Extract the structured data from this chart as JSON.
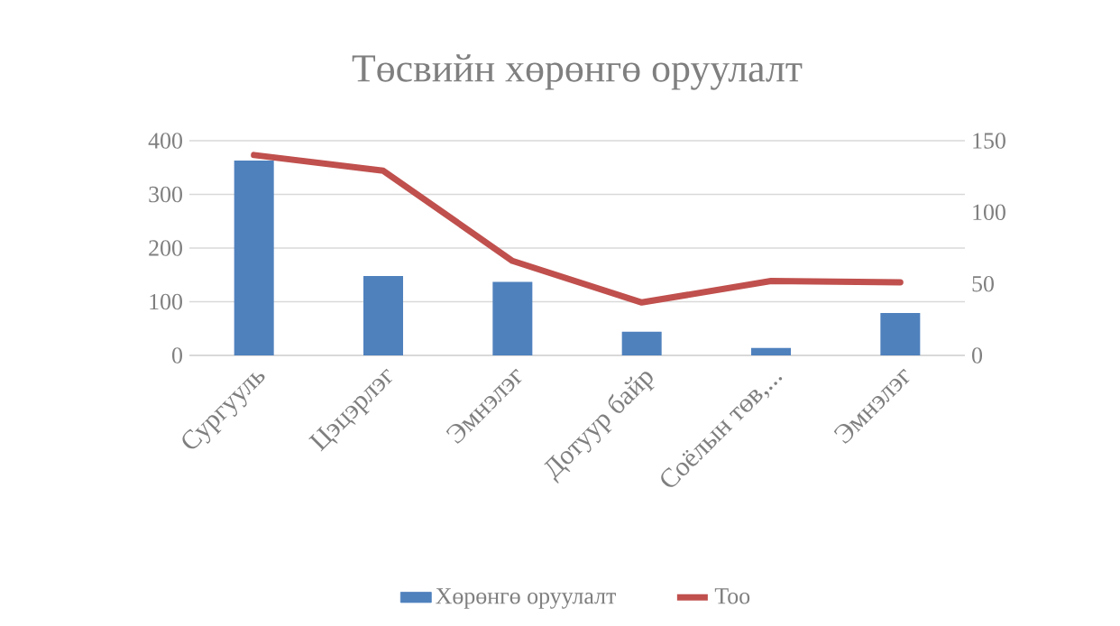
{
  "chart_data": {
    "type": "bar",
    "title": "Төсвийн хөрөнгө оруулалт",
    "categories": [
      "Сургууль",
      "Цэцэрлэг",
      "Эмнэлэг",
      "Дотуур байр",
      "Соёлын төв,...",
      "Эмнэлэг"
    ],
    "series": [
      {
        "name": "Хөрөнгө оруулалт",
        "color": "#4f81bd",
        "values": [
          363,
          148,
          137,
          44,
          14,
          79
        ]
      },
      {
        "name": "Тоо",
        "type": "line",
        "axis": "y2",
        "color": "#c0504d",
        "values": [
          140,
          129,
          66,
          37,
          52,
          51
        ]
      }
    ],
    "ylim": [
      0,
      400
    ],
    "yticks": [
      0,
      100,
      200,
      300,
      400
    ],
    "y2lim": [
      0,
      150
    ],
    "y2ticks": [
      0,
      50,
      100,
      150
    ],
    "grid": "y",
    "legend": "bottom"
  }
}
